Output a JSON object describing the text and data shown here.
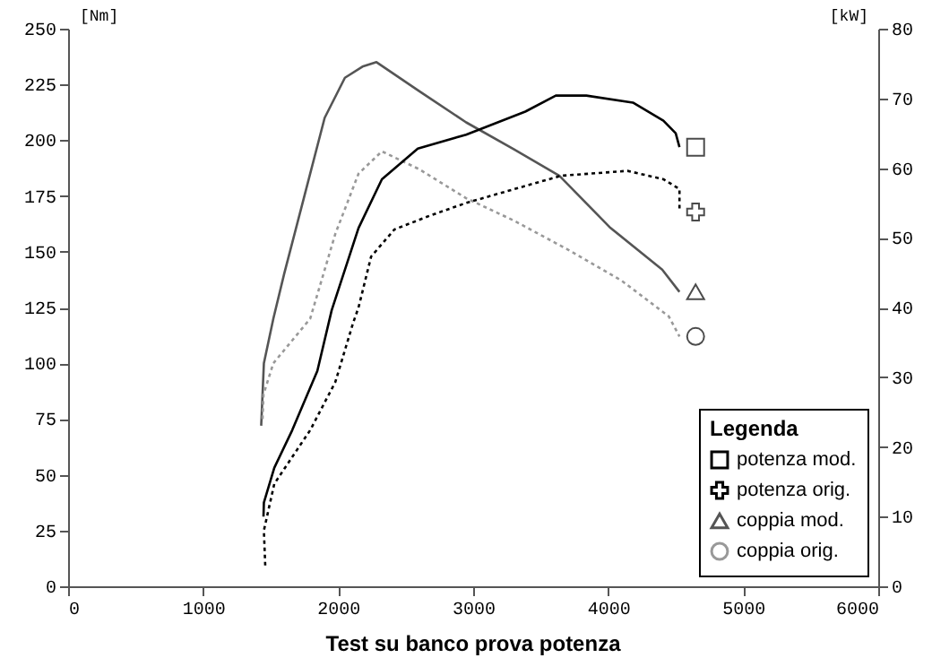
{
  "chart_data": {
    "type": "line",
    "title": "Test su banco prova potenza",
    "ylabel": "[Nm]",
    "y2label": "[kW]",
    "legend_title": "Legenda",
    "legend": "bottom right",
    "xlim": [
      0,
      6000
    ],
    "xticks": [
      0,
      {
        "value": 1000,
        "label": "1000"
      },
      {
        "value": 2000,
        "label": "2000"
      },
      {
        "value": 3000,
        "label": "3000"
      },
      {
        "value": 4000,
        "label": "4000"
      },
      {
        "value": 5000,
        "label": "5000"
      },
      {
        "value": 6000,
        "label": "6000"
      }
    ],
    "ylim": [
      0,
      250
    ],
    "yticks": [
      0,
      25,
      50,
      75,
      100,
      125,
      150,
      175,
      200,
      225,
      250
    ],
    "y2lim": [
      0,
      80
    ],
    "y2ticks": [
      0,
      10,
      20,
      30,
      40,
      50,
      60,
      70,
      80
    ],
    "series": [
      {
        "name": "potenza mod.",
        "color": "#000000",
        "axis": "y2",
        "line_style": "solid",
        "x": [
          1447,
          1450,
          1527,
          1660,
          1846,
          1952,
          2151,
          2324,
          2590,
          2948,
          3386,
          3612,
          3838,
          4183,
          4409,
          4500,
          4528
        ],
        "values": [
          10,
          12,
          17,
          22.4,
          30.9,
          39.6,
          51.4,
          58.4,
          62.8,
          64.8,
          68.1,
          70.4,
          70.4,
          69.4,
          66.8,
          65,
          63
        ]
      },
      {
        "name": "potenza orig.",
        "color": "#000000",
        "axis": "y2",
        "line_style": "dotted",
        "x": [
          1460,
          1450,
          1527,
          1793,
          1979,
          2111,
          2151,
          2244,
          2417,
          2683,
          2948,
          3307,
          3652,
          4143,
          4409,
          4528,
          4528
        ],
        "values": [
          3,
          8,
          14.7,
          22.4,
          29.3,
          37.8,
          40,
          47.3,
          51.2,
          53.2,
          55,
          57,
          58.9,
          59.6,
          58.4,
          57,
          53.7
        ]
      },
      {
        "name": "coppia mod.",
        "color": "#555555",
        "axis": "y",
        "line_style": "solid",
        "x": [
          1430,
          1450,
          1520,
          1600,
          1750,
          1900,
          2050,
          2180,
          2284,
          2600,
          2948,
          3300,
          3639,
          4011,
          4400,
          4528
        ],
        "values": [
          72,
          100,
          120,
          140,
          175,
          210,
          228,
          233,
          235,
          222,
          208,
          196,
          184,
          161,
          142,
          132
        ]
      },
      {
        "name": "coppia orig.",
        "color": "#999999",
        "axis": "y",
        "line_style": "dotted",
        "x": [
          1440,
          1447,
          1520,
          1793,
          1979,
          2151,
          2324,
          2600,
          2948,
          3300,
          3700,
          4100,
          4449,
          4528
        ],
        "values": [
          75,
          86,
          100,
          120,
          158,
          185,
          195,
          187,
          174,
          164,
          151,
          137,
          121,
          112
        ]
      }
    ]
  }
}
